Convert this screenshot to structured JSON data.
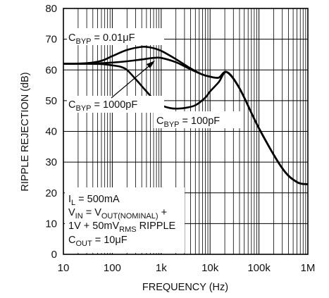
{
  "chart_data": {
    "type": "line",
    "title": "",
    "xlabel": "FREQUENCY (Hz)",
    "ylabel": "RIPPLE REJECTION (dB)",
    "x_scale": "log",
    "xlim": [
      10,
      1000000
    ],
    "ylim": [
      0,
      80
    ],
    "grid": true,
    "x_ticks": [
      {
        "value": 10,
        "label": "10"
      },
      {
        "value": 100,
        "label": "100"
      },
      {
        "value": 1000,
        "label": "1k"
      },
      {
        "value": 10000,
        "label": "10k"
      },
      {
        "value": 100000,
        "label": "100k"
      },
      {
        "value": 1000000,
        "label": "1M"
      }
    ],
    "y_ticks": [
      0,
      10,
      20,
      30,
      40,
      50,
      60,
      70,
      80
    ],
    "series": [
      {
        "name": "CBYP = 0.01μF",
        "x": [
          10,
          30,
          60,
          100,
          200,
          400,
          600,
          1000,
          2000,
          4000,
          7000,
          10000,
          15000,
          22000,
          40000,
          100000,
          300000,
          600000,
          1000000
        ],
        "y": [
          62,
          62.2,
          63,
          64.5,
          66.5,
          67.5,
          67.3,
          66.2,
          63.5,
          60.5,
          58.5,
          57.8,
          57.5,
          59.3,
          54,
          41,
          28,
          23.5,
          22.8
        ]
      },
      {
        "name": "CBYP = 1000pF",
        "x": [
          10,
          30,
          60,
          100,
          200,
          400,
          700,
          1000,
          2000,
          4000,
          7000,
          10000,
          15000,
          22000,
          40000,
          100000,
          300000,
          600000,
          1000000
        ],
        "y": [
          62,
          62,
          62.2,
          62.4,
          62.8,
          63.4,
          63.9,
          63.9,
          62.5,
          60.2,
          58.5,
          57.8,
          57.5,
          59.3,
          54,
          41,
          28,
          23.5,
          22.8
        ]
      },
      {
        "name": "CBYP = 100pF",
        "x": [
          10,
          30,
          60,
          100,
          150,
          200,
          300,
          500,
          800,
          1000,
          1500,
          2000,
          3000,
          5000,
          8000,
          10000,
          15000,
          22000,
          40000,
          100000,
          300000,
          600000,
          1000000
        ],
        "y": [
          62,
          62,
          61.9,
          61.5,
          61,
          60,
          57,
          53,
          49.5,
          48.5,
          47.6,
          47.4,
          47.6,
          48.5,
          51,
          53,
          56,
          59.3,
          54,
          41,
          28,
          23.5,
          22.8
        ]
      }
    ],
    "labels": [
      {
        "text": "C",
        "sub": "BYP",
        "rest": " = 0.01μF"
      },
      {
        "text": "C",
        "sub": "BYP",
        "rest": " = 1000pF"
      },
      {
        "text": "C",
        "sub": "BYP",
        "rest": " = 100pF"
      }
    ],
    "conditions": {
      "line1": "I",
      "line1_sub": "L",
      "line1_rest": " = 500mA",
      "line2": "V",
      "line2_sub": "IN",
      "line2_mid": " = V",
      "line2_sub2": "OUT(NOMINAL)",
      "line2_rest": " +",
      "line3": "1V + 50mV",
      "line3_sub": "RMS",
      "line3_rest": " RIPPLE",
      "line4": "C",
      "line4_sub": "OUT",
      "line4_rest": " = 10μF"
    }
  }
}
